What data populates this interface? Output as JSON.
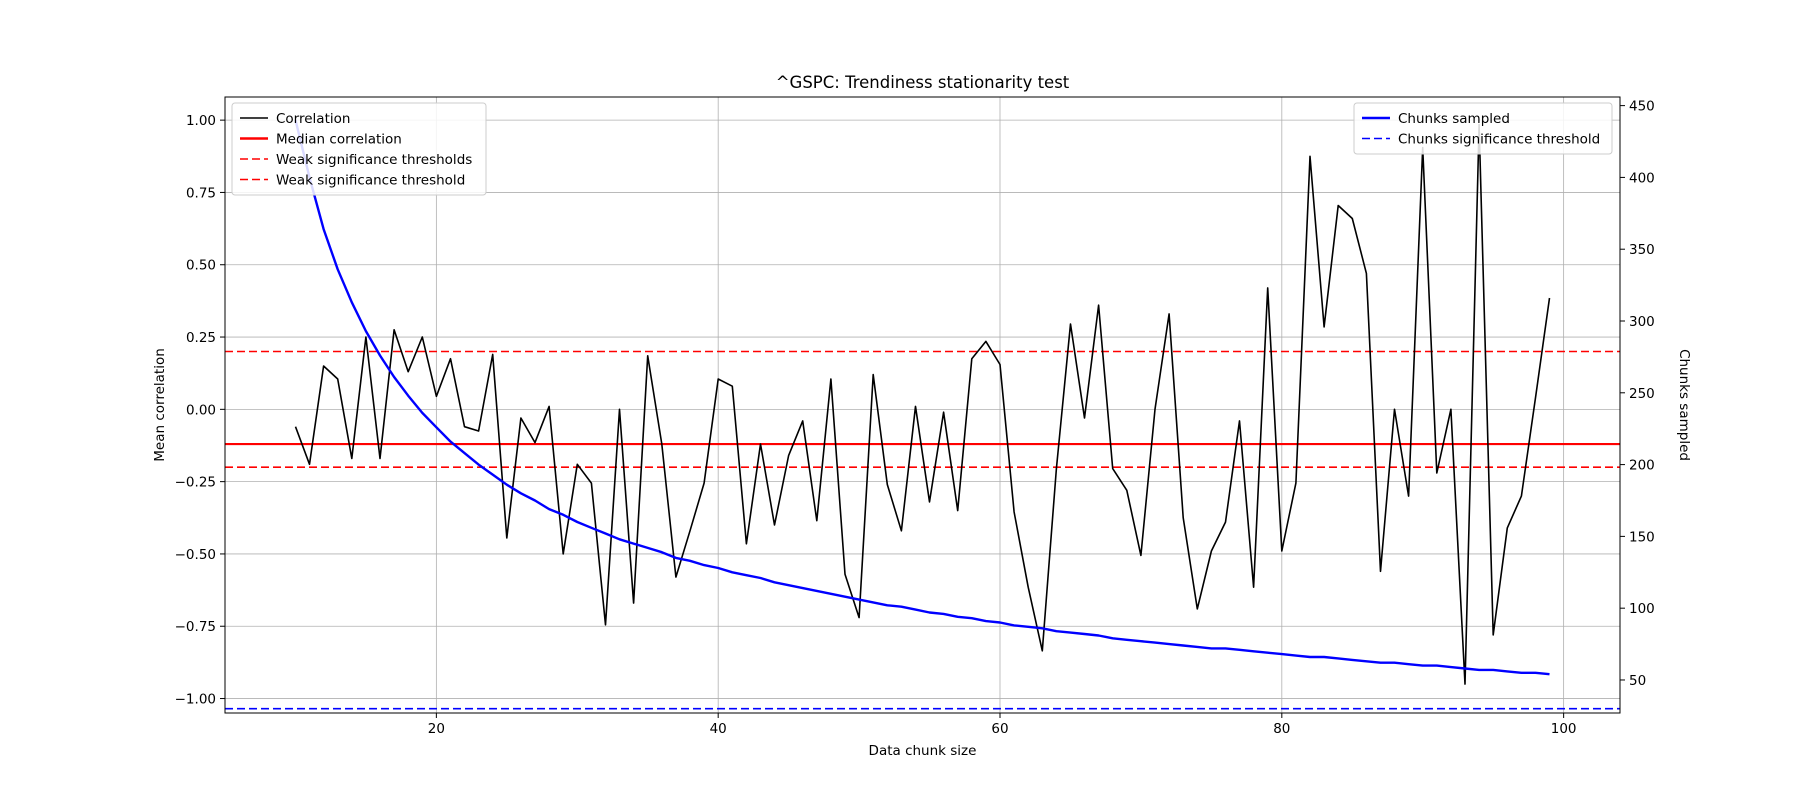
{
  "chart_data": {
    "type": "line",
    "title": "^GSPC: Trendiness stationarity test",
    "xlabel": "Data chunk size",
    "ylabel": "Mean correlation",
    "y2label": "Chunks sampled",
    "xlim": [
      5,
      104
    ],
    "ylim": [
      -1.05,
      1.08
    ],
    "y2lim": [
      27,
      456
    ],
    "xticks": [
      20,
      40,
      60,
      80,
      100
    ],
    "yticks": [
      1.0,
      0.75,
      0.5,
      0.25,
      0.0,
      -0.25,
      -0.5,
      -0.75,
      -1.0
    ],
    "ytick_labels": [
      "1.00",
      "0.75",
      "0.50",
      "0.25",
      "0.00",
      "−0.25",
      "−0.50",
      "−0.75",
      "−1.00"
    ],
    "y2ticks": [
      450,
      400,
      350,
      300,
      250,
      200,
      150,
      100,
      50
    ],
    "grid": true,
    "x": [
      10,
      11,
      12,
      13,
      14,
      15,
      16,
      17,
      18,
      19,
      20,
      21,
      22,
      23,
      24,
      25,
      26,
      27,
      28,
      29,
      30,
      31,
      32,
      33,
      34,
      35,
      36,
      37,
      38,
      39,
      40,
      41,
      42,
      43,
      44,
      45,
      46,
      47,
      48,
      49,
      50,
      51,
      52,
      53,
      54,
      55,
      56,
      57,
      58,
      59,
      60,
      61,
      62,
      63,
      64,
      65,
      66,
      67,
      68,
      69,
      70,
      71,
      72,
      73,
      74,
      75,
      76,
      77,
      78,
      79,
      80,
      81,
      82,
      83,
      84,
      85,
      86,
      87,
      88,
      89,
      90,
      91,
      92,
      93,
      94,
      95,
      96,
      97,
      98,
      99
    ],
    "series": [
      {
        "name": "Correlation",
        "axis": "left",
        "color": "#000000",
        "values": [
          -0.06,
          -0.19,
          0.15,
          0.105,
          -0.17,
          0.25,
          -0.17,
          0.275,
          0.13,
          0.25,
          0.045,
          0.175,
          -0.06,
          -0.075,
          0.19,
          -0.445,
          -0.03,
          -0.115,
          0.01,
          -0.5,
          -0.19,
          -0.255,
          -0.745,
          0.0,
          -0.67,
          0.185,
          -0.12,
          -0.58,
          -0.42,
          -0.255,
          0.105,
          0.08,
          -0.465,
          -0.12,
          -0.4,
          -0.16,
          -0.04,
          -0.385,
          0.105,
          -0.57,
          -0.72,
          0.12,
          -0.26,
          -0.42,
          0.01,
          -0.32,
          -0.01,
          -0.35,
          0.175,
          0.235,
          0.155,
          -0.355,
          -0.615,
          -0.835,
          -0.205,
          0.295,
          -0.03,
          0.36,
          -0.205,
          -0.28,
          -0.505,
          0.0,
          0.33,
          -0.375,
          -0.69,
          -0.49,
          -0.39,
          -0.04,
          -0.615,
          0.42,
          -0.49,
          -0.255,
          0.875,
          0.285,
          0.705,
          0.66,
          0.47,
          -0.56,
          0.0,
          -0.3,
          0.905,
          -0.22,
          0.0,
          -0.95,
          0.985,
          -0.78,
          -0.41,
          -0.3,
          0.04,
          0.385
        ]
      },
      {
        "name": "Chunks sampled",
        "axis": "right",
        "color": "#0000ff",
        "values": [
          440,
          400,
          364,
          336,
          313,
          293,
          276,
          261,
          248,
          236,
          226,
          216,
          208,
          200,
          193,
          186,
          180,
          175,
          169,
          165,
          160,
          156,
          152,
          148,
          145,
          142,
          139,
          135,
          133,
          130,
          128,
          125,
          123,
          121,
          118,
          116,
          114,
          112,
          110,
          108,
          106,
          104,
          102,
          101,
          99,
          97,
          96,
          94,
          93,
          91,
          90,
          88,
          87,
          86,
          84,
          83,
          82,
          81,
          79,
          78,
          77,
          76,
          75,
          74,
          73,
          72,
          72,
          71,
          70,
          69,
          68,
          67,
          66,
          66,
          65,
          64,
          63,
          62,
          62,
          61,
          60,
          60,
          59,
          58,
          57,
          57,
          56,
          55,
          55,
          54
        ]
      }
    ],
    "hlines": [
      {
        "name": "Median correlation",
        "axis": "left",
        "y": -0.12,
        "color": "#ff0000",
        "dash": "solid"
      },
      {
        "name": "Weak significance thresholds",
        "axis": "left",
        "y": 0.2,
        "color": "#ff0000",
        "dash": "dashed"
      },
      {
        "name": "Weak significance threshold",
        "axis": "left",
        "y": -0.2,
        "color": "#ff0000",
        "dash": "dashed"
      },
      {
        "name": "Chunks significance threshold",
        "axis": "right",
        "y": 30,
        "color": "#0000ff",
        "dash": "dashed"
      }
    ],
    "legend_left": {
      "placement": "top-left",
      "entries": [
        {
          "label": "Correlation",
          "color": "#000000",
          "dash": "solid",
          "bold": false
        },
        {
          "label": "Median correlation",
          "color": "#ff0000",
          "dash": "solid",
          "bold": true
        },
        {
          "label": "Weak significance thresholds",
          "color": "#ff0000",
          "dash": "dashed",
          "bold": false
        },
        {
          "label": "Weak significance threshold",
          "color": "#ff0000",
          "dash": "dashed",
          "bold": false
        }
      ]
    },
    "legend_right": {
      "placement": "top-right",
      "entries": [
        {
          "label": "Chunks sampled",
          "color": "#0000ff",
          "dash": "solid",
          "bold": true
        },
        {
          "label": "Chunks significance threshold",
          "color": "#0000ff",
          "dash": "dashed",
          "bold": false
        }
      ]
    }
  }
}
